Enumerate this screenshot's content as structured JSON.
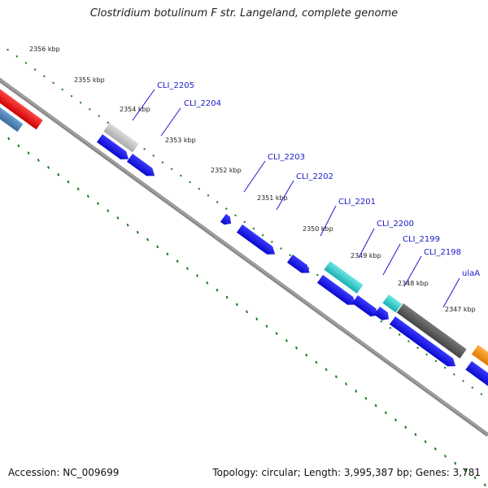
{
  "title": "Clostridium botulinum F str. Langeland, complete genome",
  "footer": {
    "accession": "Accession: NC_009699",
    "summary": "Topology: circular; Length: 3,995,387 bp; Genes: 3,781"
  },
  "scale_labels": [
    "2356 kbp",
    "2355 kbp",
    "2354 kbp",
    "2353 kbp",
    "2352 kbp",
    "2351 kbp",
    "2350 kbp",
    "2349 kbp",
    "2348 kbp",
    "2347 kbp"
  ],
  "gene_labels": [
    "CLI_2205",
    "CLI_2204",
    "CLI_2203",
    "CLI_2202",
    "CLI_2201",
    "CLI_2200",
    "CLI_2199",
    "CLI_2198",
    "ulaA"
  ],
  "colors": {
    "backbone": "#888888",
    "tick": "#1a7a1a",
    "gene_label": "#1a1acc",
    "cds_blue": "#1a1aee",
    "cyan": "#22c8c8",
    "gray_dark": "#555555",
    "gray_light": "#bbbbbb",
    "red": "#ee1111",
    "steel": "#4a7fb5",
    "orange": "#f7931e"
  }
}
